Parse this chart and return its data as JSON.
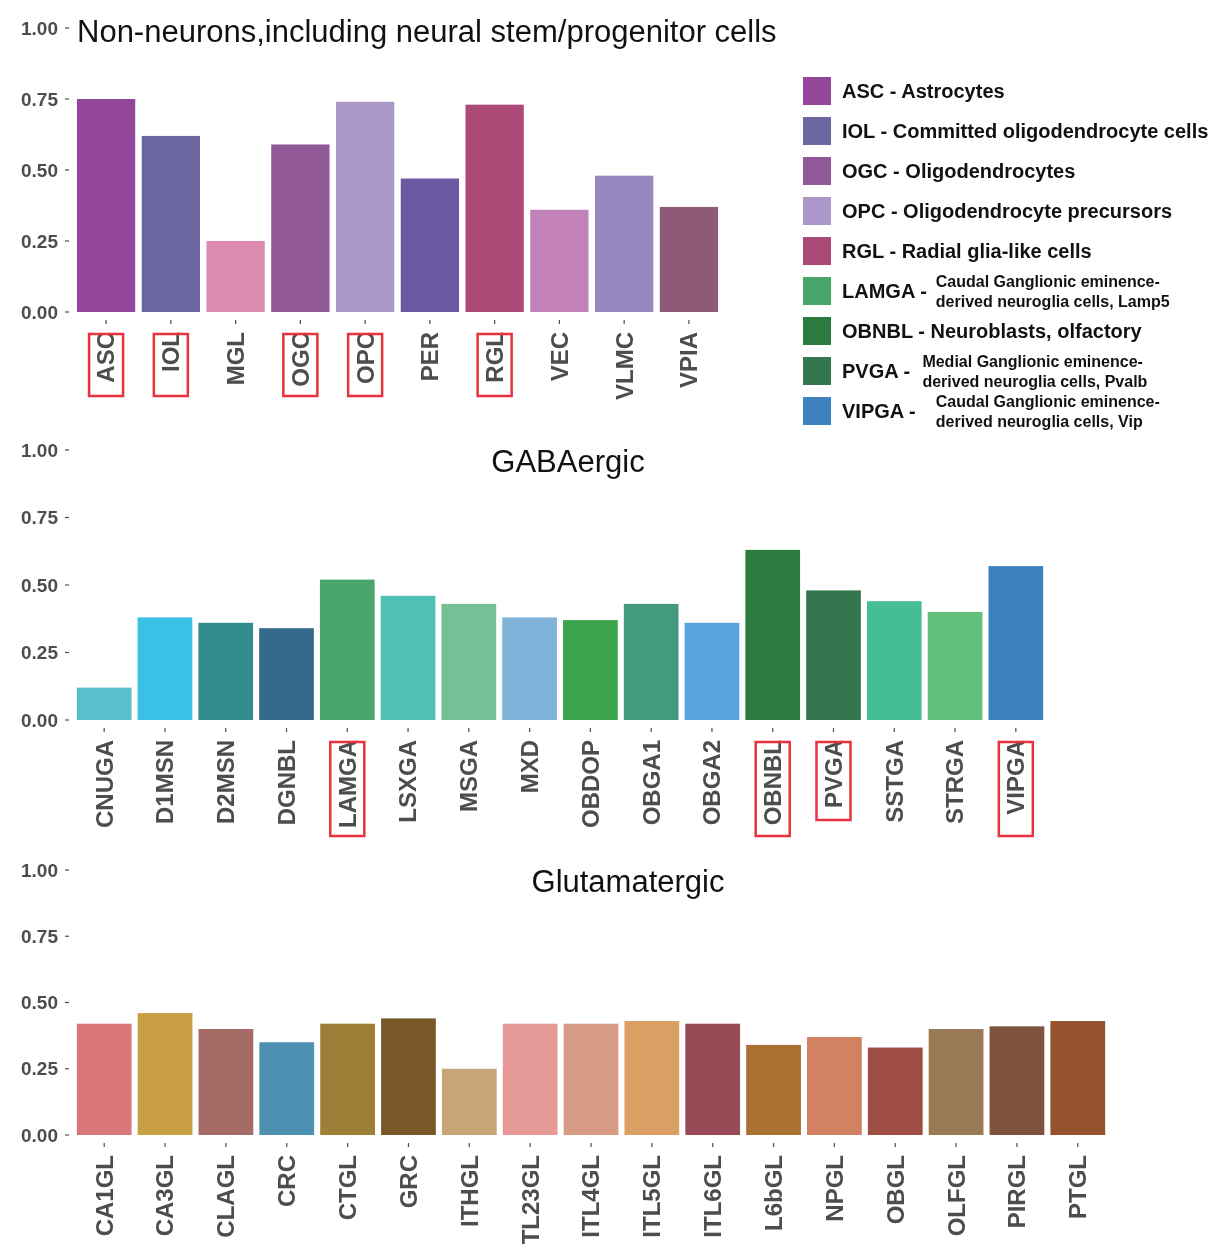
{
  "chart_data": [
    {
      "type": "bar",
      "title": "Non-neurons,including neural stem/progenitor cells",
      "categories": [
        "ASC",
        "IOL",
        "MGL",
        "OGC",
        "OPC",
        "PER",
        "RGL",
        "VEC",
        "VLMC",
        "VPIA"
      ],
      "values": [
        0.75,
        0.62,
        0.25,
        0.59,
        0.74,
        0.47,
        0.73,
        0.36,
        0.48,
        0.37
      ],
      "colors": [
        "#93479b",
        "#6d67a1",
        "#dc8ab0",
        "#905897",
        "#ac98c8",
        "#6a58a3",
        "#ab4a77",
        "#c281b9",
        "#9687c0",
        "#8e5a78"
      ],
      "ylim": [
        0,
        1
      ],
      "yticks": [
        {
          "value": 0,
          "label": "0.00"
        },
        {
          "value": 0.25,
          "label": "0.25"
        },
        {
          "value": 0.5,
          "label": "0.50"
        },
        {
          "value": 0.75,
          "label": "0.75"
        },
        {
          "value": 1,
          "label": "1.00"
        }
      ],
      "grid": false
    },
    {
      "type": "bar",
      "title": "GABAergic",
      "categories": [
        "CNUGA",
        "D1MSN",
        "D2MSN",
        "DGNBL",
        "LAMGA",
        "LSXGA",
        "MSGA",
        "MXD",
        "OBDOP",
        "OBGA1",
        "OBGA2",
        "OBNBL",
        "PVGA",
        "SSTGA",
        "STRGA",
        "VIPGA"
      ],
      "values": [
        0.12,
        0.38,
        0.36,
        0.34,
        0.52,
        0.46,
        0.43,
        0.38,
        0.37,
        0.43,
        0.36,
        0.63,
        0.48,
        0.44,
        0.4,
        0.57
      ],
      "colors": [
        "#58c0cc",
        "#3bc1e6",
        "#328c8f",
        "#346a8b",
        "#4aa56b",
        "#50c1b5",
        "#74c196",
        "#80b3da",
        "#3ba34a",
        "#449a7f",
        "#58a4df",
        "#2b7a3e",
        "#34774f",
        "#45be95",
        "#62c07a",
        "#3c82bf"
      ],
      "ylim": [
        0,
        1
      ],
      "yticks": [
        {
          "value": 0,
          "label": "0.00"
        },
        {
          "value": 0.25,
          "label": "0.25"
        },
        {
          "value": 0.5,
          "label": "0.50"
        },
        {
          "value": 0.75,
          "label": "0.75"
        },
        {
          "value": 1,
          "label": "1.00"
        }
      ],
      "grid": false
    },
    {
      "type": "bar",
      "title": "Glutamatergic",
      "categories": [
        "CA1GL",
        "CA3GL",
        "CLAGL",
        "CRC",
        "CTGL",
        "GRC",
        "ITHGL",
        "TL23GL",
        "ITL4GL",
        "ITL5GL",
        "ITL6GL",
        "L6bGL",
        "NPGL",
        "OBGL",
        "OLFGL",
        "PIRGL",
        "PTGL"
      ],
      "values": [
        0.42,
        0.46,
        0.4,
        0.35,
        0.42,
        0.44,
        0.25,
        0.42,
        0.42,
        0.43,
        0.42,
        0.34,
        0.37,
        0.33,
        0.4,
        0.41,
        0.43
      ],
      "colors": [
        "#d9777b",
        "#c89e42",
        "#a66b67",
        "#4e90b1",
        "#9d7f37",
        "#785828",
        "#c7a577",
        "#e59a98",
        "#d89c85",
        "#dc9f63",
        "#984b56",
        "#ab7132",
        "#d28262",
        "#9d4d43",
        "#987a55",
        "#80533f",
        "#96522c"
      ],
      "ylim": [
        0,
        1
      ],
      "yticks": [
        {
          "value": 0,
          "label": "0.00"
        },
        {
          "value": 0.25,
          "label": "0.25"
        },
        {
          "value": 0.5,
          "label": "0.50"
        },
        {
          "value": 0.75,
          "label": "0.75"
        },
        {
          "value": 1,
          "label": "1.00"
        }
      ],
      "grid": false
    },
    {
      "type": "other",
      "annotations": [
        "ASC - Astrocytes",
        "IOL - Committed oligodendrocyte cells",
        "OGC - Oligodendrocytes",
        "OPC - Oligodendrocyte precursors",
        "RGL - Radial glia-like cells",
        "LAMGA - Caudal Ganglionic eminence-derived neuroglia cells, Lamp5",
        "OBNBL - Neuroblasts, olfactory",
        "PVGA - Medial Ganglionic eminence-derived neuroglia cells, Pvalb",
        "VIPGA - Caudal Ganglionic eminence-derived neuroglia cells, Vip"
      ],
      "colors": [
        "#93479b",
        "#6d67a1",
        "#905897",
        "#ac98c8",
        "#ab4a77",
        "#4aa56b",
        "#2b7a3e",
        "#34774f",
        "#3c82bf"
      ]
    }
  ]
}
